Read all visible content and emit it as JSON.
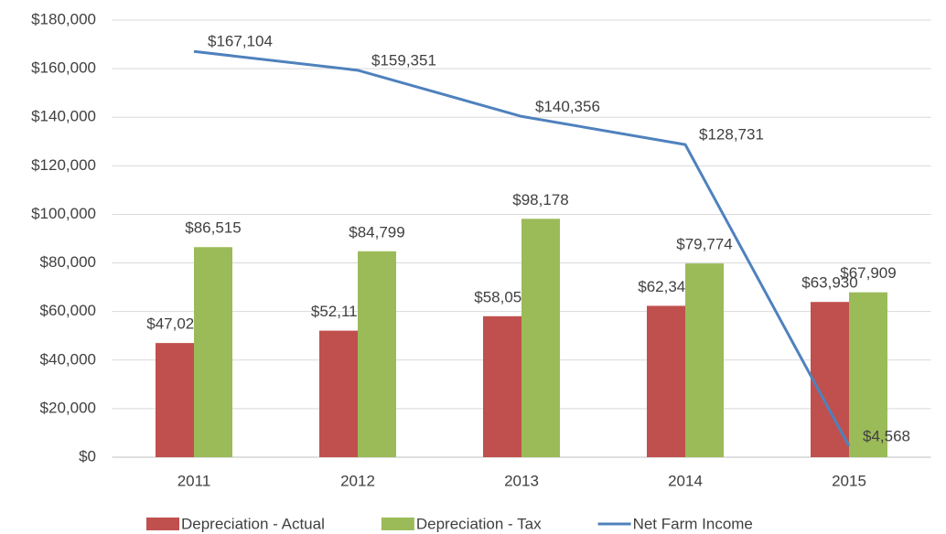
{
  "chart_data": {
    "type": "bar",
    "categories": [
      "2011",
      "2012",
      "2013",
      "2014",
      "2015"
    ],
    "series": [
      {
        "name": "Depreciation - Actual",
        "type": "bar",
        "color": "#c0504d",
        "values": [
          47020,
          52115,
          58052,
          62343,
          63930
        ],
        "value_labels": [
          "$47,020",
          "$52,115",
          "$58,052",
          "$62,343",
          "$63,930"
        ]
      },
      {
        "name": "Depreciation - Tax",
        "type": "bar",
        "color": "#9bbb59",
        "values": [
          86515,
          84799,
          98178,
          79774,
          67909
        ],
        "value_labels": [
          "$86,515",
          "$84,799",
          "$98,178",
          "$79,774",
          "$67,909"
        ]
      },
      {
        "name": "Net Farm Income",
        "type": "line",
        "color": "#4f81bd",
        "values": [
          167104,
          159351,
          140356,
          128731,
          4568
        ],
        "value_labels": [
          "$167,104",
          "$159,351",
          "$140,356",
          "$128,731",
          "$4,568"
        ]
      }
    ],
    "ylim": [
      0,
      180000
    ],
    "yticks": [
      {
        "value": 0,
        "label": "$0"
      },
      {
        "value": 20000,
        "label": "$20,000"
      },
      {
        "value": 40000,
        "label": "$40,000"
      },
      {
        "value": 60000,
        "label": "$60,000"
      },
      {
        "value": 80000,
        "label": "$80,000"
      },
      {
        "value": 100000,
        "label": "$100,000"
      },
      {
        "value": 120000,
        "label": "$120,000"
      },
      {
        "value": 140000,
        "label": "$140,000"
      },
      {
        "value": 160000,
        "label": "$160,000"
      },
      {
        "value": 180000,
        "label": "$180,000"
      }
    ],
    "grid": true,
    "legend": "bottom"
  }
}
